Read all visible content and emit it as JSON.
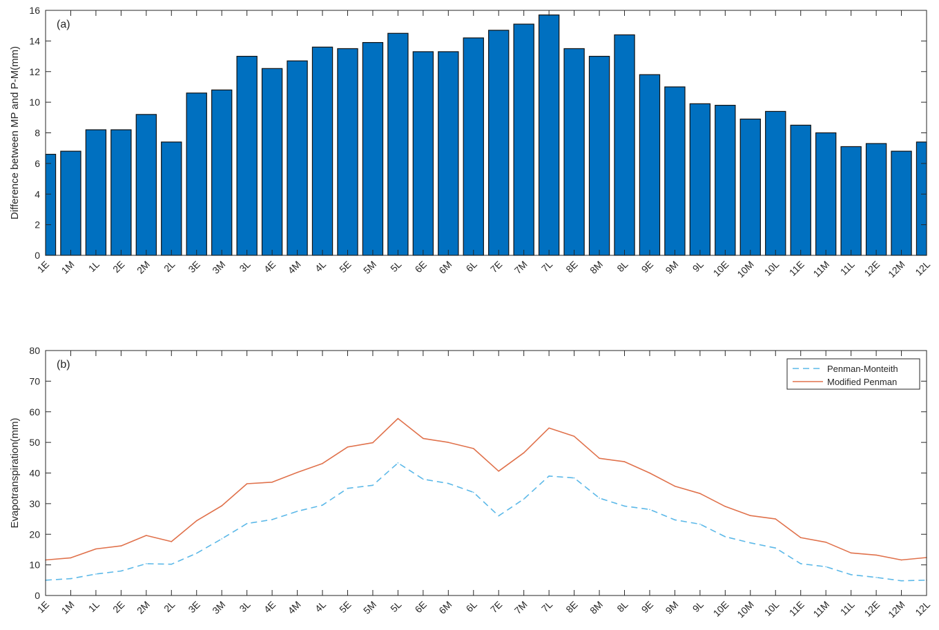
{
  "chart_data": [
    {
      "type": "bar",
      "panel_label": "(a)",
      "title": "",
      "xlabel": "",
      "ylabel": "Difference between MP and P-M(mm)",
      "ylim": [
        0,
        16
      ],
      "yticks": [
        0,
        2,
        4,
        6,
        8,
        10,
        12,
        14,
        16
      ],
      "grid": false,
      "bar_color": "#0070c0",
      "categories": [
        "1E",
        "1M",
        "1L",
        "2E",
        "2M",
        "2L",
        "3E",
        "3M",
        "3L",
        "4E",
        "4M",
        "4L",
        "5E",
        "5M",
        "5L",
        "6E",
        "6M",
        "6L",
        "7E",
        "7M",
        "7L",
        "8E",
        "8M",
        "8L",
        "9E",
        "9M",
        "9L",
        "10E",
        "10M",
        "10L",
        "11E",
        "11M",
        "11L",
        "12E",
        "12M",
        "12L"
      ],
      "values": [
        6.6,
        6.8,
        8.2,
        8.2,
        9.2,
        7.4,
        10.6,
        10.8,
        13.0,
        12.2,
        12.7,
        13.6,
        13.5,
        13.9,
        14.5,
        13.3,
        13.3,
        14.2,
        14.7,
        15.1,
        15.7,
        13.5,
        13.0,
        14.4,
        11.8,
        11.0,
        9.9,
        9.8,
        8.9,
        9.4,
        8.5,
        8.0,
        7.1,
        7.3,
        6.8,
        7.4
      ]
    },
    {
      "type": "line",
      "panel_label": "(b)",
      "title": "",
      "xlabel": "",
      "ylabel": "Evapotranspiration(mm)",
      "ylim": [
        0,
        80
      ],
      "yticks": [
        0,
        10,
        20,
        30,
        40,
        50,
        60,
        70,
        80
      ],
      "grid": false,
      "legend_position": "top-right",
      "categories": [
        "1E",
        "1M",
        "1L",
        "2E",
        "2M",
        "2L",
        "3E",
        "3M",
        "3L",
        "4E",
        "4M",
        "4L",
        "5E",
        "5M",
        "5L",
        "6E",
        "6M",
        "6L",
        "7E",
        "7M",
        "7L",
        "8E",
        "8M",
        "8L",
        "9E",
        "9M",
        "9L",
        "10E",
        "10M",
        "10L",
        "11E",
        "11M",
        "11L",
        "12E",
        "12M",
        "12L"
      ],
      "series": [
        {
          "name": "Penman-Monteith",
          "color": "#5bb8e8",
          "style": "dashed",
          "values": [
            5.0,
            5.5,
            7.0,
            8.0,
            10.4,
            10.2,
            13.8,
            18.5,
            23.5,
            24.8,
            27.5,
            29.5,
            35.0,
            36.0,
            43.3,
            38.0,
            36.6,
            33.7,
            26.0,
            31.5,
            39.0,
            38.4,
            31.8,
            29.2,
            28.1,
            24.7,
            23.3,
            19.2,
            17.2,
            15.5,
            10.4,
            9.4,
            6.8,
            5.9,
            4.8,
            5.0
          ]
        },
        {
          "name": "Modified Penman",
          "color": "#e0714b",
          "style": "solid",
          "values": [
            11.6,
            12.3,
            15.2,
            16.2,
            19.6,
            17.6,
            24.4,
            29.3,
            36.5,
            37.0,
            40.2,
            43.1,
            48.5,
            49.9,
            57.8,
            51.3,
            50.0,
            48.0,
            40.6,
            46.6,
            54.7,
            52.0,
            44.8,
            43.7,
            40.0,
            35.7,
            33.3,
            29.1,
            26.1,
            25.0,
            18.9,
            17.4,
            13.9,
            13.2,
            11.6,
            12.4
          ]
        }
      ]
    }
  ]
}
